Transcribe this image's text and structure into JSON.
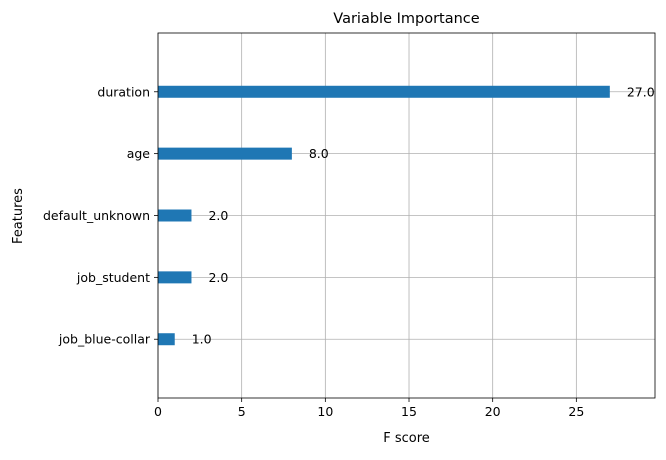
{
  "chart_data": {
    "type": "bar",
    "orientation": "horizontal",
    "title": "Variable Importance",
    "xlabel": "F score",
    "ylabel": "Features",
    "categories": [
      "duration",
      "age",
      "default_unknown",
      "job_student",
      "job_blue-collar"
    ],
    "values": [
      27.0,
      8.0,
      2.0,
      2.0,
      1.0
    ],
    "value_labels": [
      "27.0",
      "8.0",
      "2.0",
      "2.0",
      "1.0"
    ],
    "x_ticks": [
      0,
      5,
      10,
      15,
      20,
      25
    ],
    "xlim": [
      0,
      29.7
    ],
    "grid": true,
    "bar_color": "#1f77b4"
  }
}
